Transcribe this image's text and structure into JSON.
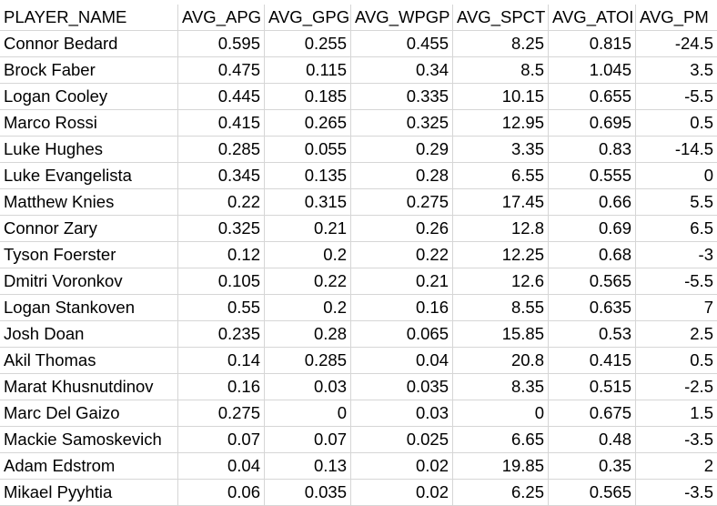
{
  "columns": [
    "PLAYER_NAME",
    "AVG_APG",
    "AVG_GPG",
    "AVG_WPGP",
    "AVG_SPCT",
    "AVG_ATOI",
    "AVG_PM"
  ],
  "rows": [
    [
      "Connor Bedard",
      "0.595",
      "0.255",
      "0.455",
      "8.25",
      "0.815",
      "-24.5"
    ],
    [
      "Brock Faber",
      "0.475",
      "0.115",
      "0.34",
      "8.5",
      "1.045",
      "3.5"
    ],
    [
      "Logan Cooley",
      "0.445",
      "0.185",
      "0.335",
      "10.15",
      "0.655",
      "-5.5"
    ],
    [
      "Marco Rossi",
      "0.415",
      "0.265",
      "0.325",
      "12.95",
      "0.695",
      "0.5"
    ],
    [
      "Luke Hughes",
      "0.285",
      "0.055",
      "0.29",
      "3.35",
      "0.83",
      "-14.5"
    ],
    [
      "Luke Evangelista",
      "0.345",
      "0.135",
      "0.28",
      "6.55",
      "0.555",
      "0"
    ],
    [
      "Matthew Knies",
      "0.22",
      "0.315",
      "0.275",
      "17.45",
      "0.66",
      "5.5"
    ],
    [
      "Connor Zary",
      "0.325",
      "0.21",
      "0.26",
      "12.8",
      "0.69",
      "6.5"
    ],
    [
      "Tyson Foerster",
      "0.12",
      "0.2",
      "0.22",
      "12.25",
      "0.68",
      "-3"
    ],
    [
      "Dmitri Voronkov",
      "0.105",
      "0.22",
      "0.21",
      "12.6",
      "0.565",
      "-5.5"
    ],
    [
      "Logan Stankoven",
      "0.55",
      "0.2",
      "0.16",
      "8.55",
      "0.635",
      "7"
    ],
    [
      "Josh Doan",
      "0.235",
      "0.28",
      "0.065",
      "15.85",
      "0.53",
      "2.5"
    ],
    [
      "Akil Thomas",
      "0.14",
      "0.285",
      "0.04",
      "20.8",
      "0.415",
      "0.5"
    ],
    [
      "Marat Khusnutdinov",
      "0.16",
      "0.03",
      "0.035",
      "8.35",
      "0.515",
      "-2.5"
    ],
    [
      "Marc Del Gaizo",
      "0.275",
      "0",
      "0.03",
      "0",
      "0.675",
      "1.5"
    ],
    [
      "Mackie Samoskevich",
      "0.07",
      "0.07",
      "0.025",
      "6.65",
      "0.48",
      "-3.5"
    ],
    [
      "Adam Edstrom",
      "0.04",
      "0.13",
      "0.02",
      "19.85",
      "0.35",
      "2"
    ],
    [
      "Mikael Pyyhtia",
      "0.06",
      "0.035",
      "0.02",
      "6.25",
      "0.565",
      "-3.5"
    ]
  ]
}
